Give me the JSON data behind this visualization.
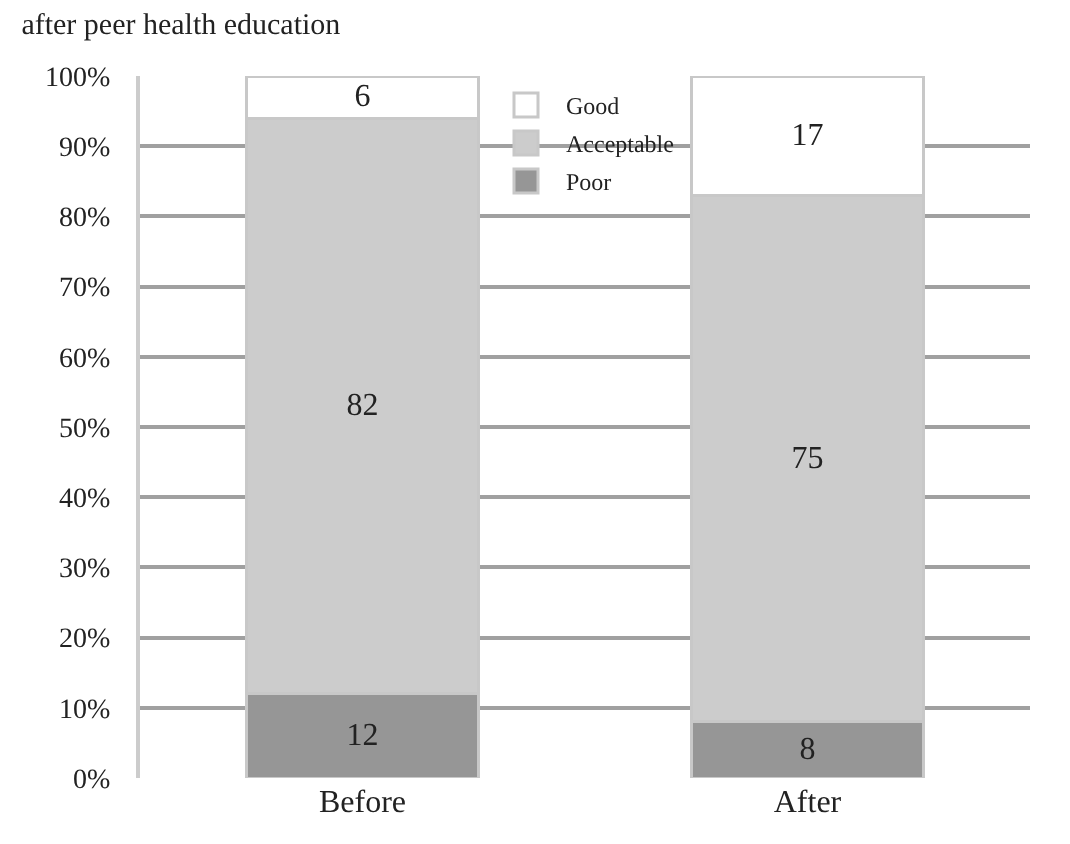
{
  "chart_data": {
    "type": "bar",
    "title": "after peer health education",
    "categories": [
      "Before",
      "After"
    ],
    "stacked": true,
    "series": [
      {
        "name": "Poor",
        "color": "#969696",
        "values": [
          12,
          8
        ]
      },
      {
        "name": "Acceptable",
        "color": "#cccccc",
        "values": [
          82,
          75
        ]
      },
      {
        "name": "Good",
        "color": "#ffffff",
        "values": [
          6,
          17
        ]
      }
    ],
    "ylim": [
      0,
      100
    ],
    "yticks": [
      {
        "value": 0,
        "label": "0%"
      },
      {
        "value": 10,
        "label": "10%"
      },
      {
        "value": 20,
        "label": "20%"
      },
      {
        "value": 30,
        "label": "30%"
      },
      {
        "value": 40,
        "label": "40%"
      },
      {
        "value": 50,
        "label": "50%"
      },
      {
        "value": 60,
        "label": "60%"
      },
      {
        "value": 70,
        "label": "70%"
      },
      {
        "value": 80,
        "label": "80%"
      },
      {
        "value": 90,
        "label": "90%"
      },
      {
        "value": 100,
        "label": "100%"
      }
    ],
    "grid": "y",
    "legend": "top",
    "data_labels": true
  }
}
